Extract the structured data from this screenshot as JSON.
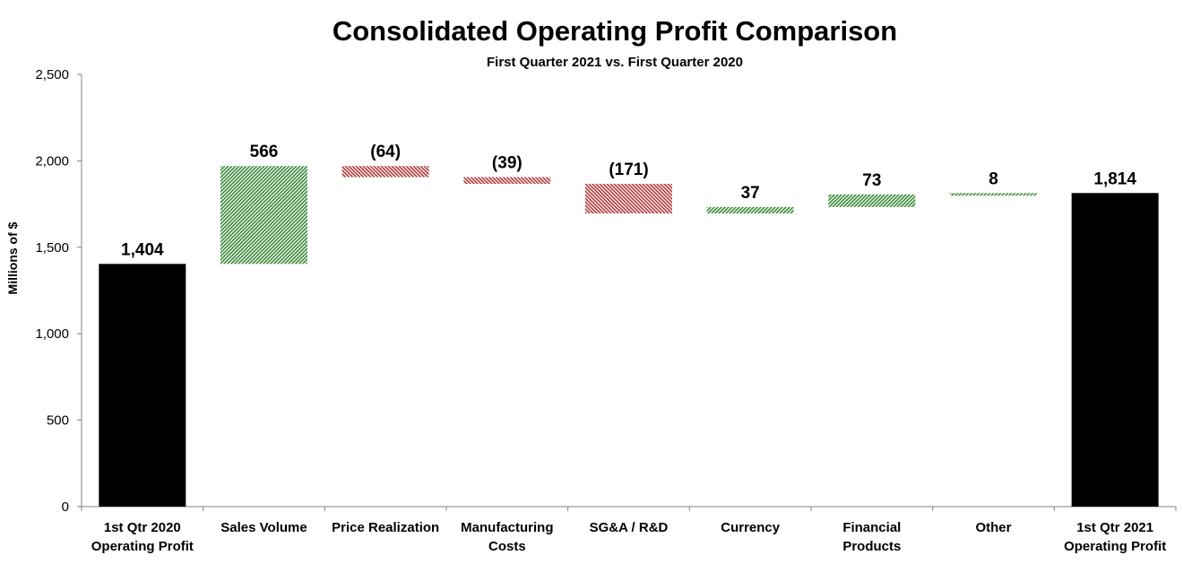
{
  "chart_data": {
    "type": "waterfall",
    "title": "Consolidated Operating Profit Comparison",
    "subtitle": "First Quarter 2021 vs. First Quarter 2020",
    "ylabel": "Millions of $",
    "ylim": [
      0,
      2500
    ],
    "yticks": [
      0,
      500,
      1000,
      1500,
      2000,
      2500
    ],
    "ytick_labels": [
      "0",
      "500",
      "1,000",
      "1,500",
      "2,000",
      "2,500"
    ],
    "categories": [
      [
        "1st Qtr 2020",
        "Operating Profit"
      ],
      [
        "Sales Volume"
      ],
      [
        "Price Realization"
      ],
      [
        "Manufacturing",
        "Costs"
      ],
      [
        "SG&A / R&D"
      ],
      [
        "Currency"
      ],
      [
        "Financial",
        "Products"
      ],
      [
        "Other"
      ],
      [
        "1st Qtr 2021",
        "Operating Profit"
      ]
    ],
    "values": [
      1404,
      566,
      -64,
      -39,
      -171,
      37,
      73,
      8,
      1814
    ],
    "kinds": [
      "total",
      "delta",
      "delta",
      "delta",
      "delta",
      "delta",
      "delta",
      "delta",
      "total"
    ],
    "data_labels": [
      "1,404",
      "566",
      "(64)",
      "(39)",
      "(171)",
      "37",
      "73",
      "8",
      "1,814"
    ],
    "colors": {
      "total": "#000000",
      "increase": "#3a8a3a",
      "decrease": "#b03a3a"
    }
  }
}
